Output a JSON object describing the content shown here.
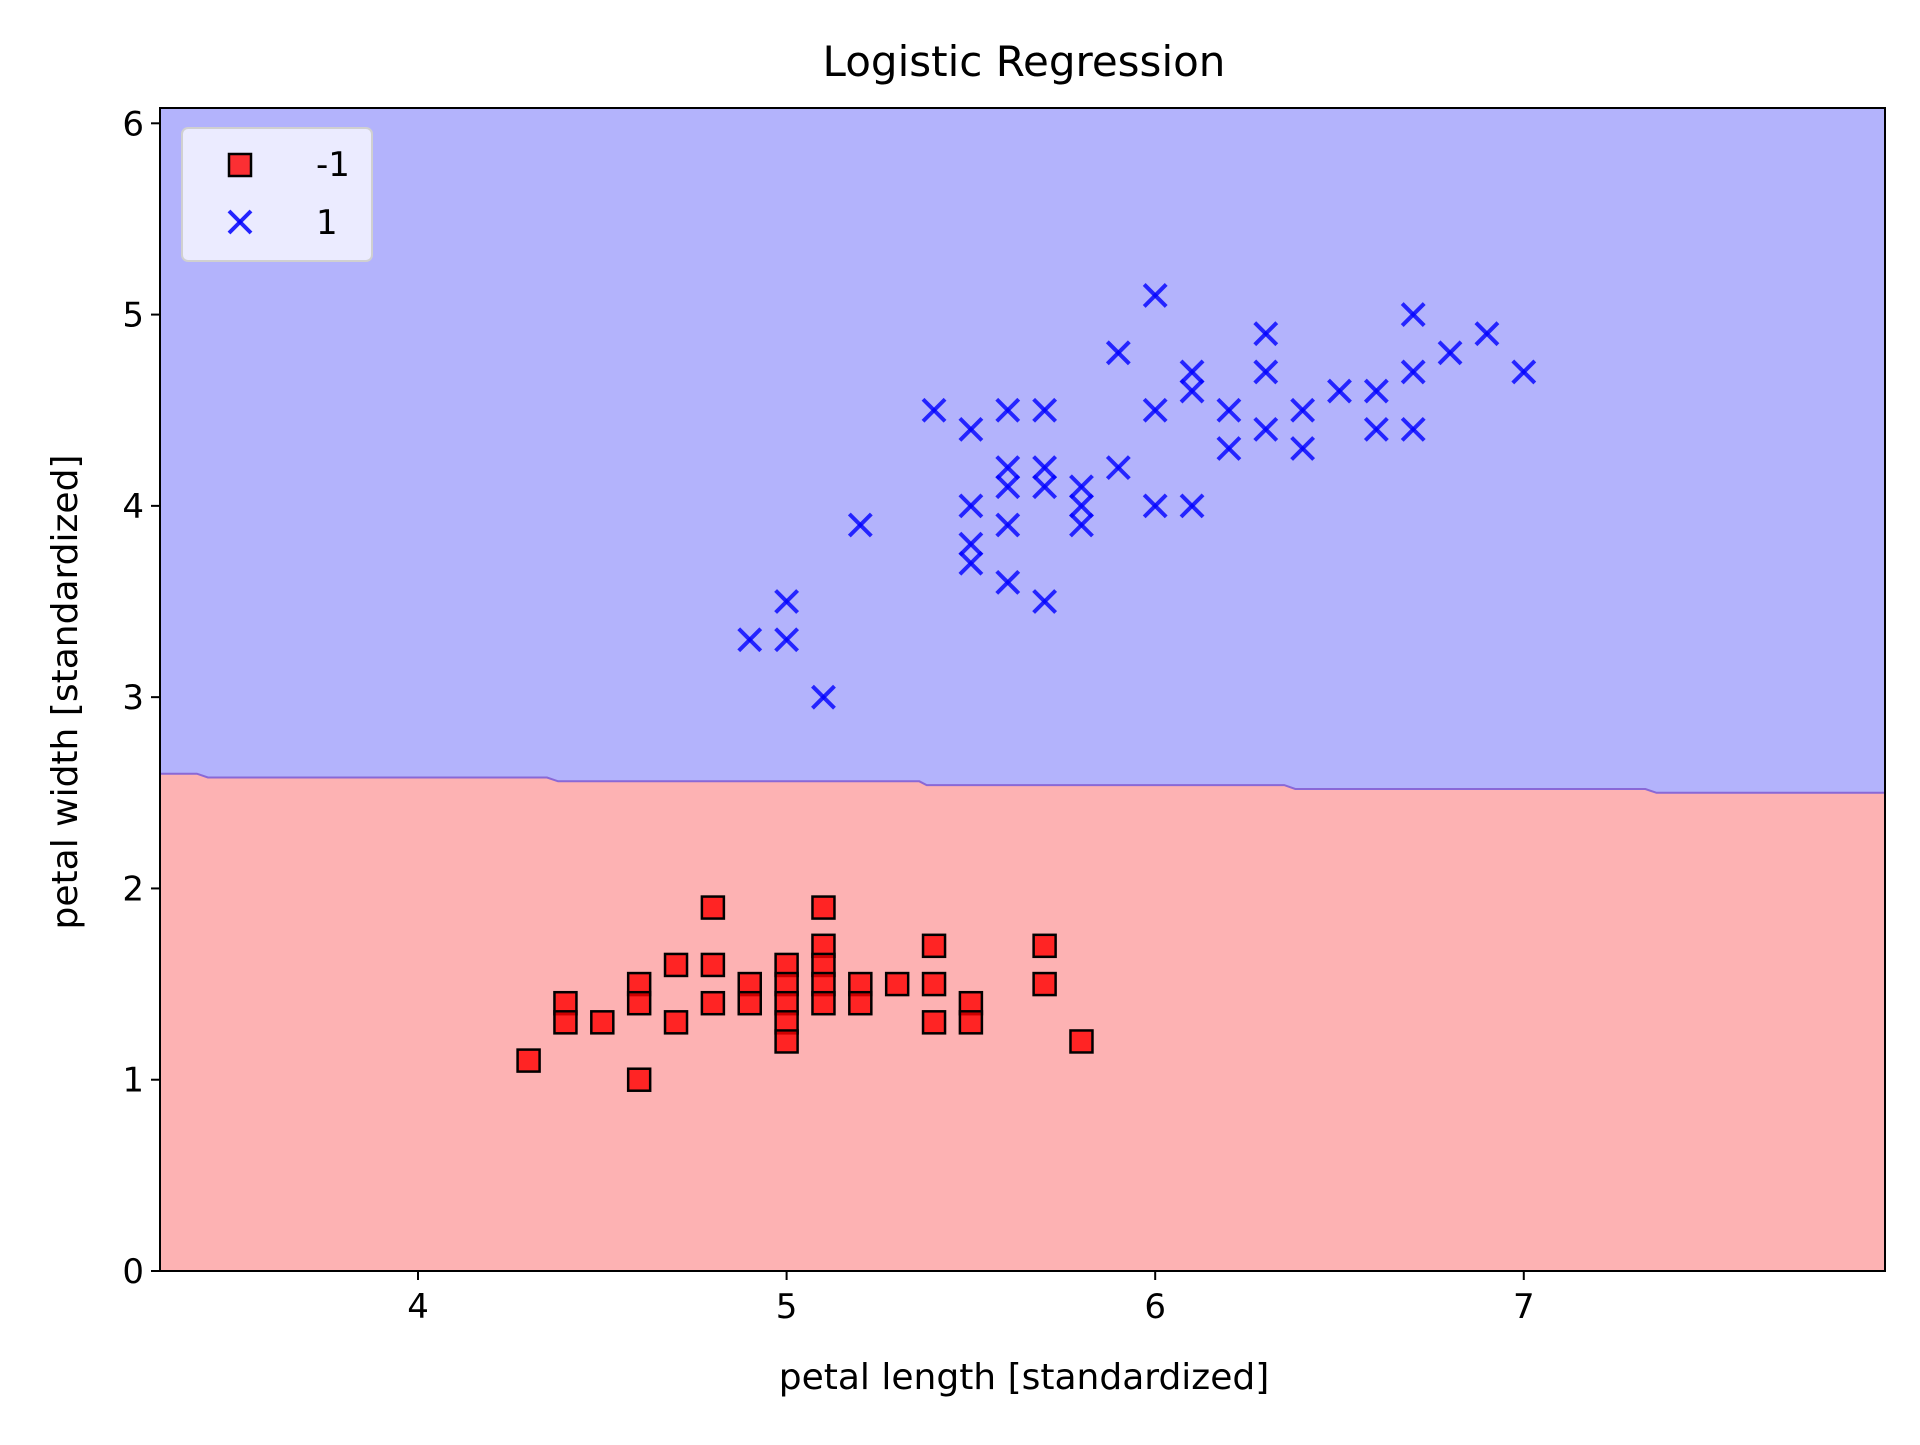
{
  "chart_data": {
    "type": "scatter",
    "title": "Logistic Regression",
    "xlabel": "petal length [standardized]",
    "ylabel": "petal width [standardized]",
    "xlim": [
      3.3,
      7.98
    ],
    "ylim": [
      0,
      6.08
    ],
    "x_ticks": [
      4,
      5,
      6,
      7
    ],
    "y_ticks": [
      0,
      1,
      2,
      3,
      4,
      5,
      6
    ],
    "x_tick_labels": [
      "4",
      "5",
      "6",
      "7"
    ],
    "y_tick_labels": [
      "0",
      "1",
      "2",
      "3",
      "4",
      "5",
      "6"
    ],
    "grid": false,
    "legend_position": "top-left",
    "decision_regions": {
      "upper_class": "1",
      "lower_class": "-1",
      "upper_color": "#b3b3fc",
      "lower_color": "#fdb2b3",
      "boundary_color": "#8a68d6",
      "boundary": [
        [
          3.3,
          2.6
        ],
        [
          3.4,
          2.6
        ],
        [
          3.43,
          2.58
        ],
        [
          4.35,
          2.58
        ],
        [
          4.38,
          2.56
        ],
        [
          5.36,
          2.56
        ],
        [
          5.38,
          2.54
        ],
        [
          6.35,
          2.54
        ],
        [
          6.38,
          2.52
        ],
        [
          7.33,
          2.52
        ],
        [
          7.36,
          2.5
        ],
        [
          7.98,
          2.5
        ]
      ]
    },
    "series": [
      {
        "name": "-1",
        "marker": "square",
        "color": "#ff0000",
        "edge_color": "#000000",
        "points": [
          [
            4.3,
            1.1
          ],
          [
            4.4,
            1.4
          ],
          [
            4.4,
            1.3
          ],
          [
            4.5,
            1.3
          ],
          [
            4.6,
            1.5
          ],
          [
            4.6,
            1.4
          ],
          [
            4.6,
            1.0
          ],
          [
            4.7,
            1.6
          ],
          [
            4.7,
            1.3
          ],
          [
            4.8,
            1.9
          ],
          [
            4.8,
            1.6
          ],
          [
            4.8,
            1.4
          ],
          [
            4.9,
            1.5
          ],
          [
            4.9,
            1.4
          ],
          [
            5.0,
            1.6
          ],
          [
            5.0,
            1.5
          ],
          [
            5.0,
            1.4
          ],
          [
            5.0,
            1.3
          ],
          [
            5.0,
            1.2
          ],
          [
            5.1,
            1.9
          ],
          [
            5.1,
            1.7
          ],
          [
            5.1,
            1.6
          ],
          [
            5.1,
            1.5
          ],
          [
            5.1,
            1.4
          ],
          [
            5.2,
            1.5
          ],
          [
            5.2,
            1.4
          ],
          [
            5.3,
            1.5
          ],
          [
            5.4,
            1.7
          ],
          [
            5.4,
            1.5
          ],
          [
            5.4,
            1.3
          ],
          [
            5.5,
            1.4
          ],
          [
            5.5,
            1.3
          ],
          [
            5.7,
            1.7
          ],
          [
            5.7,
            1.5
          ],
          [
            5.8,
            1.2
          ]
        ]
      },
      {
        "name": "1",
        "marker": "x",
        "color": "#0000ff",
        "points": [
          [
            4.9,
            3.3
          ],
          [
            5.0,
            3.5
          ],
          [
            5.0,
            3.3
          ],
          [
            5.1,
            3.0
          ],
          [
            5.2,
            3.9
          ],
          [
            5.4,
            4.5
          ],
          [
            5.5,
            4.4
          ],
          [
            5.5,
            4.0
          ],
          [
            5.5,
            3.8
          ],
          [
            5.5,
            3.7
          ],
          [
            5.6,
            4.5
          ],
          [
            5.6,
            4.2
          ],
          [
            5.6,
            4.1
          ],
          [
            5.6,
            3.9
          ],
          [
            5.6,
            3.6
          ],
          [
            5.7,
            4.5
          ],
          [
            5.7,
            4.2
          ],
          [
            5.7,
            4.1
          ],
          [
            5.7,
            3.5
          ],
          [
            5.8,
            4.1
          ],
          [
            5.8,
            4.0
          ],
          [
            5.8,
            3.9
          ],
          [
            5.9,
            4.8
          ],
          [
            5.9,
            4.2
          ],
          [
            6.0,
            5.1
          ],
          [
            6.0,
            4.5
          ],
          [
            6.0,
            4.0
          ],
          [
            6.1,
            4.7
          ],
          [
            6.1,
            4.6
          ],
          [
            6.1,
            4.0
          ],
          [
            6.2,
            4.5
          ],
          [
            6.2,
            4.3
          ],
          [
            6.3,
            4.9
          ],
          [
            6.3,
            4.7
          ],
          [
            6.3,
            4.4
          ],
          [
            6.4,
            4.5
          ],
          [
            6.4,
            4.3
          ],
          [
            6.5,
            4.6
          ],
          [
            6.6,
            4.6
          ],
          [
            6.6,
            4.4
          ],
          [
            6.7,
            5.0
          ],
          [
            6.7,
            4.7
          ],
          [
            6.7,
            4.4
          ],
          [
            6.8,
            4.8
          ],
          [
            6.9,
            4.9
          ],
          [
            7.0,
            4.7
          ]
        ]
      }
    ]
  }
}
